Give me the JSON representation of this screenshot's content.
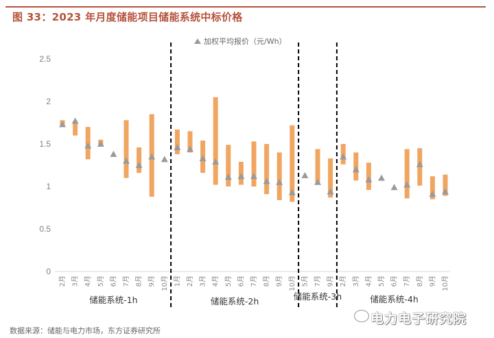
{
  "header": {
    "title": "图 33：2023 年月度储能项目储能系统中标价格"
  },
  "footer": {
    "source": "数据来源：储能与电力市场，东方证券研究所",
    "watermark": "电力电子研究院"
  },
  "colors": {
    "title": "#b5523b",
    "bar": "#f0a561",
    "marker": "#9a9a9a",
    "axis_text": "#7f7f7f",
    "divider": "#000000"
  },
  "chart_data": {
    "type": "bar",
    "subtype": "floating-range-bar with weighted-average marker",
    "title": "2023 年月度储能项目储能系统中标价格",
    "legend": [
      {
        "name": "加权平均报价（元/Wh）",
        "marker": "triangle",
        "color": "#9a9a9a"
      }
    ],
    "legend_position": "top-center",
    "ylabel": "",
    "xlabel": "",
    "ylim": [
      0,
      2.5
    ],
    "yticks": [
      0,
      0.5,
      1,
      1.5,
      2,
      2.5
    ],
    "ytick_labels": [
      "0",
      "0.5",
      "1",
      "1.5",
      "2",
      "2.5"
    ],
    "grid": false,
    "groups": [
      {
        "name": "储能系统-1h",
        "categories": [
          "2月",
          "3月",
          "4月",
          "5月",
          "6月",
          "7月",
          "8月",
          "9月",
          "10月"
        ],
        "low": [
          1.7,
          1.6,
          1.32,
          1.47,
          null,
          1.1,
          1.16,
          0.88,
          null
        ],
        "high": [
          1.78,
          1.77,
          1.7,
          1.55,
          null,
          1.78,
          1.46,
          1.85,
          null
        ],
        "avg": [
          1.73,
          1.77,
          1.48,
          1.5,
          1.38,
          1.3,
          1.25,
          1.35,
          1.32
        ]
      },
      {
        "name": "储能系统-2h",
        "categories": [
          "1月",
          "2月",
          "3月",
          "4月",
          "5月",
          "6月",
          "7月",
          "8月",
          "9月",
          "10月"
        ],
        "low": [
          1.38,
          1.4,
          1.16,
          1.02,
          1.0,
          1.02,
          1.0,
          0.91,
          0.84,
          0.82
        ],
        "high": [
          1.67,
          1.65,
          1.54,
          2.05,
          1.49,
          1.29,
          1.53,
          1.5,
          1.4,
          1.72
        ],
        "avg": [
          1.46,
          1.44,
          1.33,
          1.29,
          1.11,
          1.12,
          1.12,
          1.06,
          1.05,
          0.93
        ]
      },
      {
        "name": "储能系统-3h",
        "categories": [
          "5月",
          "7月",
          "9月"
        ],
        "low": [
          null,
          1.05,
          0.87
        ],
        "high": [
          null,
          1.44,
          1.33
        ],
        "avg": [
          1.13,
          1.05,
          0.94
        ]
      },
      {
        "name": "储能系统-4h",
        "categories": [
          "2月",
          "3月",
          "4月",
          "5月",
          "6月",
          "7月",
          "8月",
          "9月",
          "10月"
        ],
        "low": [
          1.26,
          1.07,
          0.96,
          null,
          null,
          0.86,
          1.01,
          0.85,
          0.89
        ],
        "high": [
          1.5,
          1.4,
          1.28,
          null,
          null,
          1.44,
          1.45,
          1.12,
          1.14
        ],
        "avg": [
          1.35,
          1.2,
          1.08,
          1.1,
          0.99,
          1.02,
          1.26,
          0.91,
          0.94
        ]
      }
    ]
  }
}
